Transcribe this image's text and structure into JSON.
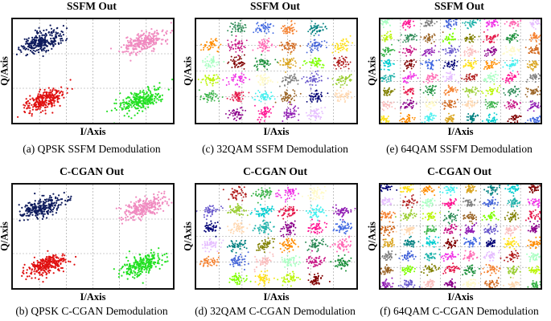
{
  "panels": [
    {
      "id": "a",
      "title": "SSFM Out",
      "xlabel": "I/Axis",
      "ylabel": "Q/Axis",
      "caption": "(a) QPSK SSFM Demodulation",
      "modulation": "QPSK",
      "grid": [
        6,
        3
      ],
      "chart_data": {
        "type": "scatter",
        "clusters": [
          {
            "x": 0.18,
            "y": 0.78,
            "color": "#0d1a5c"
          },
          {
            "x": 0.82,
            "y": 0.78,
            "color": "#f08bc0"
          },
          {
            "x": 0.2,
            "y": 0.22,
            "color": "#e01010"
          },
          {
            "x": 0.8,
            "y": 0.22,
            "color": "#22e022"
          }
        ]
      }
    },
    {
      "id": "c",
      "title": "SSFM Out",
      "xlabel": "I/Axis",
      "ylabel": "Q/Axis",
      "caption": "(c) 32QAM SSFM Demodulation",
      "modulation": "32QAM",
      "grid": [
        7,
        4
      ]
    },
    {
      "id": "e",
      "title": "SSFM Out",
      "xlabel": "I/Axis",
      "ylabel": "Q/Axis",
      "caption": "(e) 64QAM SSFM Demodulation",
      "modulation": "64QAM",
      "grid": [
        8,
        5
      ]
    },
    {
      "id": "b",
      "title": "C-CGAN Out",
      "xlabel": "I/Axis",
      "ylabel": "Q/Axis",
      "caption": "(b) QPSK C-CGAN Demodulation",
      "modulation": "QPSK",
      "grid": [
        6,
        3
      ],
      "chart_data": {
        "type": "scatter",
        "clusters": [
          {
            "x": 0.18,
            "y": 0.78,
            "color": "#0d1a5c"
          },
          {
            "x": 0.82,
            "y": 0.78,
            "color": "#f08bc0"
          },
          {
            "x": 0.2,
            "y": 0.22,
            "color": "#e01010"
          },
          {
            "x": 0.8,
            "y": 0.22,
            "color": "#22e022"
          }
        ]
      }
    },
    {
      "id": "d",
      "title": "C-CGAN Out",
      "xlabel": "I/Axis",
      "ylabel": "Q/Axis",
      "caption": "(d) 32QAM C-CGAN Demodulation",
      "modulation": "32QAM",
      "grid": [
        7,
        4
      ]
    },
    {
      "id": "f",
      "title": "C-CGAN Out",
      "xlabel": "I/Axis",
      "ylabel": "Q/Axis",
      "caption": "(f) 64QAM C-CGAN Demodulation",
      "modulation": "64QAM",
      "grid": [
        8,
        5
      ]
    }
  ],
  "palette": [
    "#e6194b",
    "#3cb44b",
    "#ffe119",
    "#4363d8",
    "#f58231",
    "#911eb4",
    "#46f0f0",
    "#f032e6",
    "#bcf60c",
    "#fabebe",
    "#008080",
    "#e6beff",
    "#9a6324",
    "#fffac8",
    "#800000",
    "#aaffc3",
    "#808000",
    "#ffd8b1",
    "#000075",
    "#808080",
    "#1a8f3a",
    "#c71585",
    "#ff8c00",
    "#20b2aa",
    "#9acd32",
    "#6a5acd",
    "#daa520",
    "#ff69b4",
    "#2e8b57",
    "#8b008b",
    "#00ced1",
    "#b22222",
    "#7fff00",
    "#d2691e",
    "#4169e1",
    "#ff1493"
  ]
}
